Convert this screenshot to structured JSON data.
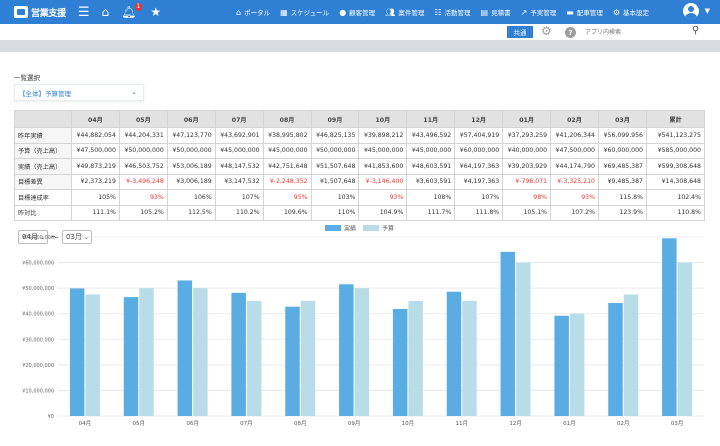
{
  "header": {
    "logo_text": "営業支援",
    "notification_count": "1",
    "nav": [
      {
        "icon": "home",
        "label": "ポータル"
      },
      {
        "icon": "calendar",
        "label": "スケジュール"
      },
      {
        "icon": "person",
        "label": "顧客管理"
      },
      {
        "icon": "people",
        "label": "案件管理"
      },
      {
        "icon": "list",
        "label": "活動管理"
      },
      {
        "icon": "doc",
        "label": "見積書"
      },
      {
        "icon": "trend",
        "label": "予実管理"
      },
      {
        "icon": "truck",
        "label": "配車管理"
      },
      {
        "icon": "gear",
        "label": "基本設定"
      }
    ]
  },
  "subbar": {
    "tab_label": "共通",
    "search_placeholder": "アプリ内検索"
  },
  "selector": {
    "section_label": "一覧選択",
    "selected": "【全体】予算管理"
  },
  "table": {
    "headers": [
      "",
      "04月",
      "05月",
      "06月",
      "07月",
      "08月",
      "09月",
      "10月",
      "11月",
      "12月",
      "01月",
      "02月",
      "03月",
      "累計"
    ],
    "rows": [
      {
        "label": "昨年実績",
        "cells": [
          "¥44,882,054",
          "¥44,204,331",
          "¥47,123,770",
          "¥43,692,901",
          "¥38,995,802",
          "¥46,825,135",
          "¥39,898,212",
          "¥43,496,592",
          "¥57,404,919",
          "¥37,293,259",
          "¥41,206,344",
          "¥56,099,956",
          "¥541,123,275"
        ]
      },
      {
        "label": "予算（売上高）",
        "cells": [
          "¥47,500,000",
          "¥50,000,000",
          "¥50,000,000",
          "¥45,000,000",
          "¥45,000,000",
          "¥50,000,000",
          "¥45,000,000",
          "¥45,000,000",
          "¥60,000,000",
          "¥40,000,000",
          "¥47,500,000",
          "¥60,000,000",
          "¥585,000,000"
        ]
      },
      {
        "label": "実績（売上高）",
        "cells": [
          "¥49,873,219",
          "¥46,503,752",
          "¥53,006,189",
          "¥48,147,532",
          "¥42,751,648",
          "¥51,507,648",
          "¥41,853,600",
          "¥48,603,591",
          "¥64,197,363",
          "¥39,203,929",
          "¥44,174,790",
          "¥69,485,387",
          "¥599,308,648"
        ]
      },
      {
        "label": "目標差異",
        "cells": [
          "¥2,373,219",
          "¥-3,496,248",
          "¥3,006,189",
          "¥3,147,532",
          "¥-2,248,352",
          "¥1,507,648",
          "¥-3,146,400",
          "¥3,603,591",
          "¥4,197,363",
          "¥-796,071",
          "¥-3,325,210",
          "¥9,485,387",
          "¥14,308,648"
        ]
      },
      {
        "label": "目標達成率",
        "cells": [
          "105%",
          "93%",
          "106%",
          "107%",
          "95%",
          "103%",
          "93%",
          "108%",
          "107%",
          "98%",
          "93%",
          "115.8%",
          "102.4%"
        ]
      },
      {
        "label": "昨対比",
        "cells": [
          "111.1%",
          "105.2%",
          "112.5%",
          "110.2%",
          "109.6%",
          "110%",
          "104.9%",
          "111.7%",
          "111.8%",
          "105.1%",
          "107.2%",
          "123.9%",
          "110.8%"
        ]
      }
    ]
  },
  "range": {
    "from": "04月",
    "to": "03月",
    "separator": "〜"
  },
  "colors": {
    "actual": "#5aade3",
    "budget": "#b8dde9",
    "accent": "#2f7fd4",
    "negative": "#e53935"
  },
  "chart_data": {
    "type": "bar",
    "categories": [
      "04月",
      "05月",
      "06月",
      "07月",
      "08月",
      "09月",
      "10月",
      "11月",
      "12月",
      "01月",
      "02月",
      "03月"
    ],
    "series": [
      {
        "name": "実績",
        "values": [
          49873219,
          46503752,
          53006189,
          48147532,
          42751648,
          51507648,
          41853600,
          48603591,
          64197363,
          39203929,
          44174790,
          69485387
        ]
      },
      {
        "name": "予算",
        "values": [
          47500000,
          50000000,
          50000000,
          45000000,
          45000000,
          50000000,
          45000000,
          45000000,
          60000000,
          40000000,
          47500000,
          60000000
        ]
      }
    ],
    "ylim": [
      0,
      70000000
    ],
    "yticks": [
      "¥0",
      "¥10,000,000",
      "¥20,000,000",
      "¥30,000,000",
      "¥40,000,000",
      "¥50,000,000",
      "¥60,000,000",
      "¥70,000,000"
    ],
    "grid": true,
    "legend": "top-center"
  }
}
